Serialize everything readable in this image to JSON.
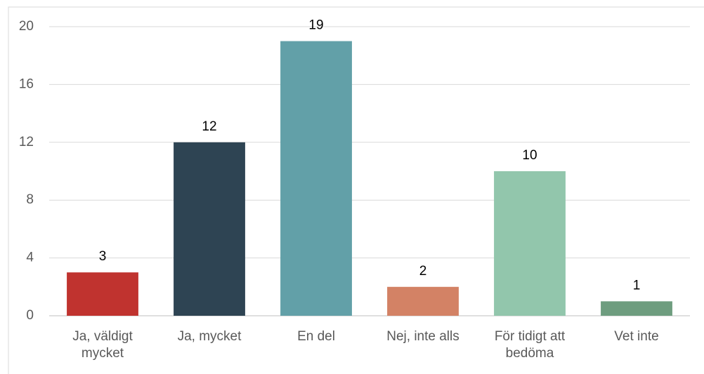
{
  "chart_data": {
    "type": "bar",
    "categories": [
      "Ja, väldigt mycket",
      "Ja, mycket",
      "En del",
      "Nej, inte alls",
      "För tidigt att bedöma",
      "Vet inte"
    ],
    "values": [
      3,
      12,
      19,
      2,
      10,
      1
    ],
    "colors": [
      "#c0332f",
      "#2e4453",
      "#62a0a8",
      "#d38265",
      "#92c6ac",
      "#6e9d7f"
    ],
    "ylim": [
      0,
      20
    ],
    "yticks": [
      0,
      4,
      8,
      12,
      16,
      20
    ],
    "grid": true
  }
}
